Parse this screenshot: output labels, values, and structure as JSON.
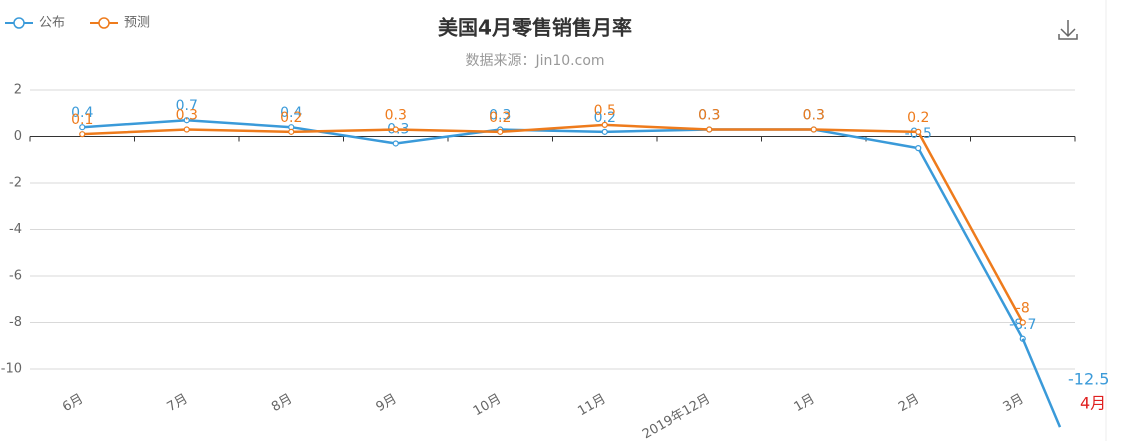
{
  "chart_data": {
    "type": "line",
    "title": "美国4月零售销售月率",
    "subtitle": "数据来源：Jin10.com",
    "categories": [
      "6月",
      "7月",
      "8月",
      "9月",
      "10月",
      "11月",
      "2019年12月",
      "1月",
      "2月",
      "3月"
    ],
    "series": [
      {
        "name": "公布",
        "color": "#3a9ad9",
        "values": [
          0.4,
          0.7,
          0.4,
          -0.3,
          0.3,
          0.2,
          0.3,
          0.3,
          -0.5,
          -8.7
        ]
      },
      {
        "name": "预测",
        "color": "#ee7b1c",
        "values": [
          0.1,
          0.3,
          0.2,
          0.3,
          0.2,
          0.5,
          0.3,
          0.3,
          0.2,
          -8
        ]
      }
    ],
    "latest": {
      "label": "4月",
      "value": -12.5
    },
    "ylim": [
      -10,
      2
    ],
    "yticks": [
      2,
      0,
      -2,
      -4,
      -6,
      -8,
      -10
    ],
    "grid": true
  }
}
